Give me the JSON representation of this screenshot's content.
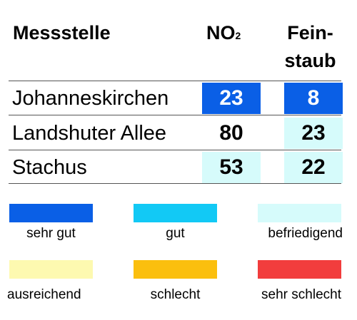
{
  "table": {
    "header": {
      "station": "Messstelle",
      "no2_main": "NO",
      "no2_sub": "2",
      "pm_line1": "Fein-",
      "pm_line2": "staub"
    },
    "rows": [
      {
        "station": "Johanneskirchen",
        "no2": "23",
        "pm": "8",
        "no2_color": "#0a5fe6",
        "pm_color": "#0a5fe6",
        "no2_text": "#ffffff",
        "pm_text": "#ffffff"
      },
      {
        "station": "Landshuter Allee",
        "no2": "80",
        "pm": "23",
        "no2_color": "#ffffff",
        "pm_color": "#d6fbfb",
        "no2_text": "#000000",
        "pm_text": "#000000"
      },
      {
        "station": "Stachus",
        "no2": "53",
        "pm": "22",
        "no2_color": "#d6fbfb",
        "pm_color": "#d6fbfb",
        "no2_text": "#000000",
        "pm_text": "#000000"
      }
    ]
  },
  "legend": [
    {
      "label": "sehr gut",
      "color": "#0a5fe6"
    },
    {
      "label": "gut",
      "color": "#12c9f5"
    },
    {
      "label": "befriedigend",
      "color": "#d6fbfb"
    },
    {
      "label": "ausreichend",
      "color": "#fdf9b0"
    },
    {
      "label": "schlecht",
      "color": "#fbbf0e"
    },
    {
      "label": "sehr schlecht",
      "color": "#f23d3d"
    }
  ]
}
